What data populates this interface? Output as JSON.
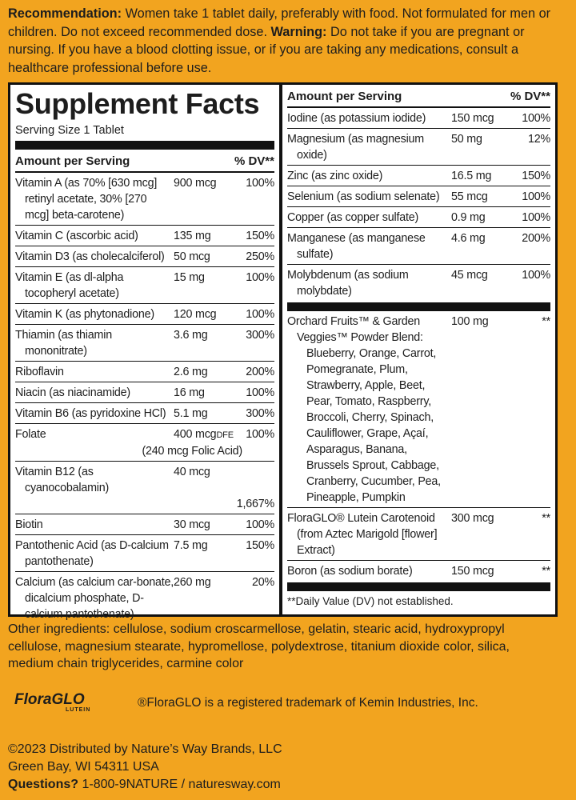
{
  "recommendation": {
    "label": "Recommendation:",
    "text": "Women take 1 tablet daily, preferably with food.  Not formulated for men or children. Do not exceed recommended dose.",
    "warning_label": "Warning:",
    "warning_text": "Do not take if you are pregnant or nursing. If you have a blood clotting issue, or if you are taking any medications, consult a healthcare professional before use."
  },
  "facts": {
    "title": "Supplement Facts",
    "serving_size": "Serving Size 1 Tablet",
    "header_amount": "Amount per Serving",
    "header_dv": "% DV**",
    "left_rows": [
      {
        "name": "Vitamin A (as 70% [630 mcg] retinyl acetate, 30% [270 mcg] beta-carotene)",
        "amount": "900 mcg",
        "dv": "100%"
      },
      {
        "name": "Vitamin C (ascorbic acid)",
        "amount": "135 mg",
        "dv": "150%"
      },
      {
        "name": "Vitamin D3 (as cholecalciferol)",
        "amount": "50 mcg",
        "dv": "250%"
      },
      {
        "name": "Vitamin E (as dl-alpha tocopheryl acetate)",
        "amount": "15 mg",
        "dv": "100%"
      },
      {
        "name": "Vitamin K (as phytonadione)",
        "amount": "120 mcg",
        "dv": "100%"
      },
      {
        "name": "Thiamin (as thiamin mononitrate)",
        "amount": "3.6 mg",
        "dv": "300%"
      },
      {
        "name": "Riboflavin",
        "amount": "2.6 mg",
        "dv": "200%"
      },
      {
        "name": "Niacin (as niacinamide)",
        "amount": "16 mg",
        "dv": "100%"
      },
      {
        "name": "Vitamin B6 (as pyridoxine HCl)",
        "amount": "5.1 mg",
        "dv": "300%"
      },
      {
        "name": "Folate",
        "amount": "400 mcg",
        "unit": "DFE",
        "dv": "100%",
        "note": "(240 mcg Folic Acid)"
      },
      {
        "name": "Vitamin B12 (as cyanocobalamin)",
        "amount": "40 mcg",
        "dv": "1,667%"
      },
      {
        "name": "Biotin",
        "amount": "30 mcg",
        "dv": "100%"
      },
      {
        "name": "Pantothenic Acid (as D-calcium pantothenate)",
        "amount": "7.5 mg",
        "dv": "150%"
      },
      {
        "name": "Calcium (as calcium car-bonate, dicalcium phosphate, D-calcium pantothenate)",
        "amount": "260 mg",
        "dv": "20%"
      }
    ],
    "right_rows": [
      {
        "name": "Iodine (as potassium iodide)",
        "amount": "150 mcg",
        "dv": "100%"
      },
      {
        "name": "Magnesium (as magnesium oxide)",
        "amount": "50 mg",
        "dv": "12%"
      },
      {
        "name": "Zinc (as zinc oxide)",
        "amount": "16.5 mg",
        "dv": "150%"
      },
      {
        "name": "Selenium (as sodium selenate)",
        "amount": "55 mcg",
        "dv": "100%"
      },
      {
        "name": "Copper (as copper sulfate)",
        "amount": "0.9 mg",
        "dv": "100%"
      },
      {
        "name": "Manganese (as manganese sulfate)",
        "amount": "4.6 mg",
        "dv": "200%"
      },
      {
        "name": "Molybdenum (as sodium molybdate)",
        "amount": "45 mcg",
        "dv": "100%"
      }
    ],
    "blend_rows": [
      {
        "name": "Orchard Fruits™ & Garden Veggies™ Powder Blend:",
        "ingredients": "Blueberry, Orange, Carrot, Pomegranate, Plum, Strawberry, Apple, Beet, Pear, Tomato, Raspberry, Broccoli, Cherry, Spinach, Cauliflower, Grape, Açaí, Asparagus, Banana, Brussels Sprout, Cabbage, Cranberry, Cucumber, Pea, Pineapple, Pumpkin",
        "amount": "100 mg",
        "dv": "**"
      },
      {
        "name": "FloraGLO® Lutein Carotenoid (from Aztec Marigold [flower] Extract)",
        "amount": "300 mcg",
        "dv": "**"
      },
      {
        "name": "Boron (as sodium borate)",
        "amount": "150 mcg",
        "dv": "**"
      }
    ],
    "footnote": "**Daily Value (DV) not established."
  },
  "other_ingredients": "Other ingredients: cellulose, sodium croscarmellose, gelatin, stearic acid, hydroxypropyl cellulose, magnesium stearate, hypromellose, polydextrose, titanium dioxide color, silica, medium chain triglycerides, carmine color",
  "trademark": {
    "logo": "FloraGLO",
    "logo_sub": "LUTEIN",
    "text": "®FloraGLO is a registered trademark of Kemin Industries, Inc."
  },
  "footer": {
    "line1": "©2023 Distributed by Nature’s Way Brands, LLC",
    "line2": "Green Bay, WI 54311 USA",
    "questions_label": "Questions?",
    "questions_text": "1-800-9NATURE / naturesway.com"
  }
}
